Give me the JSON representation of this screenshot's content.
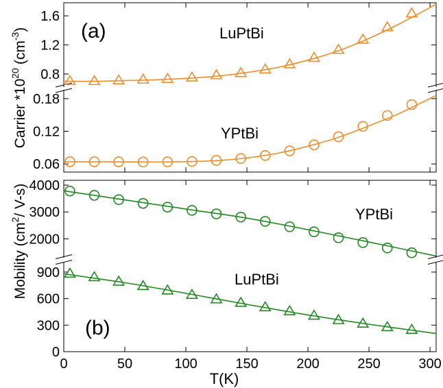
{
  "colors": {
    "orange": "#f28c28",
    "green": "#1e8a1e",
    "axis": "#000000"
  },
  "chart_data": [
    {
      "type": "line",
      "panel_label": "(a)",
      "ylabel_text": "Carrier *10",
      "ylabel_exponent": "20",
      "ylabel_unit": "(cm",
      "ylabel_unit_exponent": "-3",
      "ylabel_unit_close": ")",
      "xlim": [
        0,
        305
      ],
      "broken_axis": true,
      "segments": [
        {
          "ylim": [
            0.63,
            1.78
          ],
          "yticks": [
            0.8,
            1.2,
            1.6
          ],
          "ytick_labels": [
            "0.8",
            "1.2",
            "1.6"
          ]
        },
        {
          "ylim": [
            0.045,
            0.195
          ],
          "yticks": [
            0.06,
            0.12,
            0.18
          ],
          "ytick_labels": [
            "0.06",
            "0.12",
            "0.18"
          ]
        }
      ],
      "series": [
        {
          "name": "LuPtBi",
          "segment": 0,
          "marker": "triangle",
          "color": "orange",
          "x": [
            5,
            25,
            45,
            65,
            85,
            105,
            125,
            145,
            165,
            185,
            205,
            225,
            245,
            265,
            285
          ],
          "y": [
            0.7,
            0.7,
            0.71,
            0.72,
            0.73,
            0.75,
            0.78,
            0.81,
            0.86,
            0.93,
            1.02,
            1.13,
            1.27,
            1.44,
            1.63
          ],
          "fit_x": [
            0,
            25,
            50,
            75,
            100,
            125,
            150,
            175,
            200,
            225,
            250,
            275,
            305
          ],
          "fit_y": [
            0.7,
            0.7,
            0.71,
            0.72,
            0.74,
            0.77,
            0.82,
            0.89,
            0.99,
            1.12,
            1.29,
            1.49,
            1.76
          ]
        },
        {
          "name": "YPtBi",
          "segment": 1,
          "marker": "circle",
          "color": "orange",
          "x": [
            5,
            25,
            45,
            65,
            85,
            105,
            125,
            145,
            165,
            185,
            205,
            225,
            245,
            265,
            285
          ],
          "y": [
            0.064,
            0.064,
            0.064,
            0.0635,
            0.0638,
            0.0645,
            0.0665,
            0.07,
            0.0755,
            0.084,
            0.095,
            0.11,
            0.129,
            0.149,
            0.169
          ],
          "fit_x": [
            0,
            25,
            50,
            75,
            100,
            125,
            150,
            175,
            200,
            225,
            250,
            275,
            305
          ],
          "fit_y": [
            0.064,
            0.064,
            0.0638,
            0.0636,
            0.0642,
            0.066,
            0.071,
            0.0795,
            0.0925,
            0.109,
            0.13,
            0.153,
            0.186
          ]
        }
      ],
      "annotations": [
        "LuPtBi",
        "YPtBi"
      ]
    },
    {
      "type": "line",
      "panel_label": "(b)",
      "ylabel_text": "Mobility (cm",
      "ylabel_exponent": "2",
      "ylabel_unit": "/ V-s)",
      "xlabel": "T(K)",
      "xlim": [
        0,
        305
      ],
      "xticks": [
        0,
        50,
        100,
        150,
        200,
        250,
        300
      ],
      "xtick_labels": [
        "0",
        "50",
        "100",
        "150",
        "200",
        "250",
        "300"
      ],
      "broken_axis": true,
      "segments": [
        {
          "ylim": [
            1320,
            4180
          ],
          "yticks": [
            2000,
            3000,
            4000
          ],
          "ytick_labels": [
            "2000",
            "3000",
            "4000"
          ]
        },
        {
          "ylim": [
            0,
            1000
          ],
          "yticks": [
            0,
            300,
            600,
            900
          ],
          "ytick_labels": [
            "0",
            "300",
            "600",
            "900"
          ]
        }
      ],
      "series": [
        {
          "name": "YPtBi",
          "segment": 0,
          "marker": "circle",
          "color": "green",
          "x": [
            5,
            25,
            45,
            65,
            85,
            105,
            125,
            145,
            165,
            185,
            205,
            225,
            245,
            265,
            285
          ],
          "y": [
            3780,
            3620,
            3460,
            3320,
            3180,
            3060,
            2930,
            2810,
            2650,
            2450,
            2260,
            2040,
            1860,
            1660,
            1480
          ],
          "fit_x": [
            0,
            50,
            100,
            150,
            200,
            250,
            305
          ],
          "fit_y": [
            3790,
            3450,
            3110,
            2770,
            2340,
            1880,
            1360
          ]
        },
        {
          "name": "LuPtBi",
          "segment": 1,
          "marker": "triangle",
          "color": "green",
          "x": [
            5,
            25,
            45,
            65,
            85,
            105,
            125,
            145,
            165,
            185,
            205,
            225,
            245,
            265,
            285
          ],
          "y": [
            880,
            840,
            790,
            740,
            690,
            640,
            590,
            550,
            500,
            455,
            405,
            355,
            315,
            275,
            245
          ],
          "fit_x": [
            0,
            50,
            100,
            150,
            200,
            250,
            305
          ],
          "fit_y": [
            880,
            780,
            660,
            535,
            415,
            310,
            205
          ]
        }
      ],
      "annotations": [
        "YPtBi",
        "LuPtBi"
      ]
    }
  ]
}
